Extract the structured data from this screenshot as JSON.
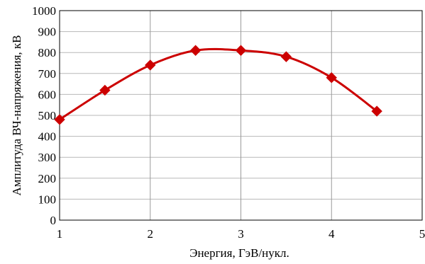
{
  "chart_data": {
    "type": "line",
    "title": "",
    "xlabel": "Энергия, ГэВ/нукл.",
    "ylabel": "Амплитуда ВЧ-напряжения, кВ",
    "xlim": [
      1,
      5
    ],
    "ylim": [
      0,
      1000
    ],
    "xticks": [
      1,
      2,
      3,
      4,
      5
    ],
    "yticks": [
      0,
      100,
      200,
      300,
      400,
      500,
      600,
      700,
      800,
      900,
      1000
    ],
    "x_gridlines": [
      2,
      3,
      4
    ],
    "y_gridlines": [
      100,
      200,
      300,
      400,
      500,
      600,
      700,
      800,
      900
    ],
    "grid": true,
    "legend": "none",
    "series": [
      {
        "x": [
          1,
          1.5,
          2,
          2.5,
          3,
          3.5,
          4,
          4.5
        ],
        "values": [
          480,
          620,
          740,
          810,
          810,
          780,
          680,
          520
        ],
        "color": "#cc0000",
        "marker": "diamond",
        "smooth": true
      }
    ]
  }
}
